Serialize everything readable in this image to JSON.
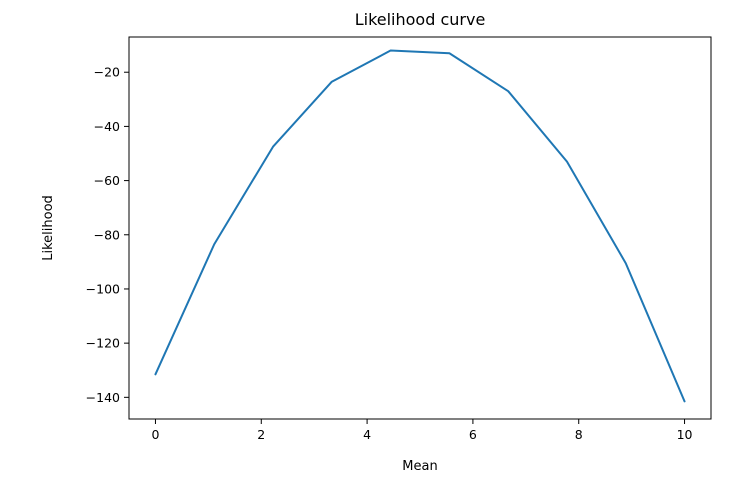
{
  "chart_data": {
    "type": "line",
    "title": "Likelihood curve",
    "xlabel": "Mean",
    "ylabel": "Likelihood",
    "xlim": [
      -0.5,
      10.5
    ],
    "ylim": [
      -148,
      -7
    ],
    "xticks": [
      0,
      2,
      4,
      6,
      8,
      10
    ],
    "yticks": [
      -20,
      -40,
      -60,
      -80,
      -100,
      -120,
      -140
    ],
    "grid": false,
    "series": [
      {
        "color": "#1f77b4",
        "x": [
          0,
          1.111,
          2.222,
          3.333,
          4.444,
          5.556,
          6.667,
          7.778,
          8.889,
          10
        ],
        "y": [
          -131.5,
          -83.5,
          -47.5,
          -23.5,
          -12,
          -13,
          -27,
          -53,
          -90.5,
          -141.5
        ]
      }
    ]
  }
}
